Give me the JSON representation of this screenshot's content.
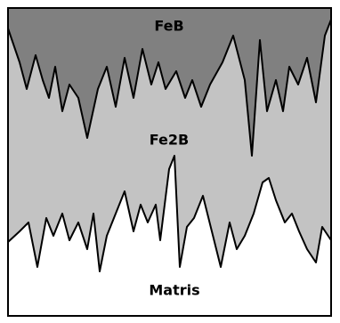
{
  "layers": [
    {
      "label": "FeB"
    },
    {
      "label": "Fe2B"
    },
    {
      "label": "Matris"
    }
  ]
}
